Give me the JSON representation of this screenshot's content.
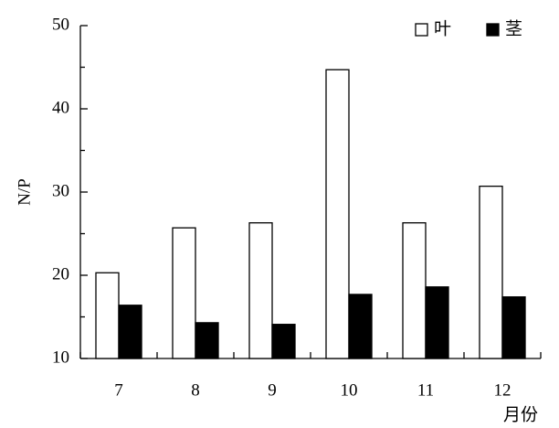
{
  "chart_data": {
    "type": "bar",
    "x_label": "月份",
    "y_label": "N/P",
    "categories": [
      "7",
      "8",
      "9",
      "10",
      "11",
      "12"
    ],
    "series": [
      {
        "name": "叶",
        "color": "#ffffff",
        "values": [
          20.3,
          25.7,
          26.3,
          44.7,
          26.3,
          30.7
        ]
      },
      {
        "name": "茎",
        "color": "#000000",
        "values": [
          16.4,
          14.3,
          14.1,
          17.7,
          18.6,
          17.4
        ]
      }
    ],
    "ylim": [
      10,
      50
    ],
    "yticks": [
      10,
      20,
      30,
      40,
      50
    ],
    "minor_yticks": [
      15,
      25,
      35,
      45
    ],
    "legend": "top-right"
  }
}
